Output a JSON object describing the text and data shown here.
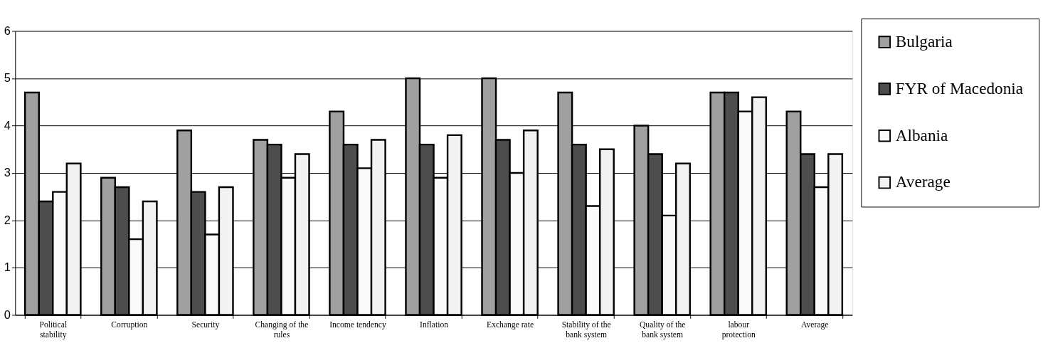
{
  "chart_data": {
    "type": "bar",
    "categories": [
      "Political stability",
      "Corruption",
      "Security",
      "Changing of the rules",
      "Income tendency",
      "Inflation",
      "Exchange rate",
      "Stability of the bank system",
      "Quality of the bank system",
      "labour protection",
      "Average"
    ],
    "series": [
      {
        "name": "Bulgaria",
        "color": "#a0a0a0",
        "values": [
          4.7,
          2.9,
          3.9,
          3.7,
          4.3,
          5.0,
          5.0,
          4.7,
          4.0,
          4.7,
          4.3
        ]
      },
      {
        "name": "FYR of Macedonia",
        "color": "#4d4d4d",
        "values": [
          2.4,
          2.7,
          2.6,
          3.6,
          3.6,
          3.6,
          3.7,
          3.6,
          3.4,
          4.7,
          3.4
        ]
      },
      {
        "name": "Albania",
        "color": "#fafafa",
        "values": [
          2.6,
          1.6,
          1.7,
          2.9,
          3.1,
          2.9,
          3.0,
          2.3,
          2.1,
          4.3,
          2.7
        ]
      },
      {
        "name": "Average",
        "color": "#f2f2f2",
        "values": [
          3.2,
          2.4,
          2.7,
          3.4,
          3.7,
          3.8,
          3.9,
          3.5,
          3.2,
          4.6,
          3.4
        ]
      }
    ],
    "ylim": [
      0,
      6
    ],
    "yticks": [
      0,
      1,
      2,
      3,
      4,
      5,
      6
    ],
    "grid": "y",
    "legend": "right"
  }
}
